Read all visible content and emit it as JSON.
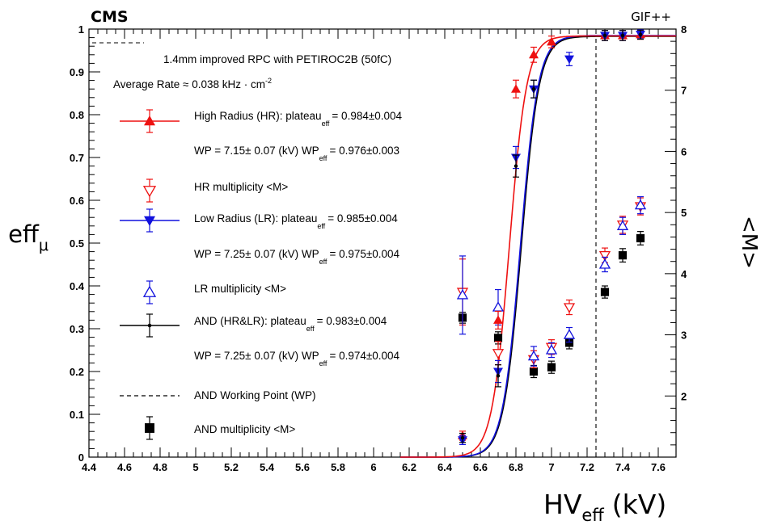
{
  "chart_data": {
    "type": "scatter",
    "experiment_label": "CMS",
    "facility_label": "GIF++",
    "title": "1.4mm improved RPC with PETIROC2B (50fC)",
    "rate_label": "Average Rate ≈ 0.038 kHz · cm",
    "rate_exponent": "-2",
    "xlabel": {
      "main": "HV",
      "sub": "eff",
      "unit": "(kV)"
    },
    "ylabel_left": {
      "main": "eff",
      "sub": "μ"
    },
    "ylabel_right": "<M>",
    "xlim": [
      4.4,
      7.7
    ],
    "ylim_left": [
      0,
      1
    ],
    "ylim_right": [
      1.0,
      8.0
    ],
    "x_ticks": [
      "4.4",
      "4.6",
      "4.8",
      "5",
      "5.2",
      "5.4",
      "5.6",
      "5.8",
      "6",
      "6.2",
      "6.4",
      "6.6",
      "6.8",
      "7",
      "7.2",
      "7.4",
      "7.6"
    ],
    "y_left_ticks": [
      "0",
      "0.1",
      "0.2",
      "0.3",
      "0.4",
      "0.5",
      "0.6",
      "0.7",
      "0.8",
      "0.9",
      "1"
    ],
    "y_right_ticks": [
      "2",
      "3",
      "4",
      "5",
      "6",
      "7",
      "8"
    ],
    "working_point_kV": 7.25,
    "series": [
      {
        "name": "High Radius (HR)",
        "color": "#ee1111",
        "axis": "left",
        "marker": "triangle-up",
        "fit": {
          "plateau": 0.984,
          "wp": 7.15,
          "slope": 20.5,
          "hv50": 6.763
        },
        "points": [
          [
            6.5,
            0.05,
            0.005
          ],
          [
            6.7,
            0.32,
            0.015
          ],
          [
            6.8,
            0.86,
            0.015
          ],
          [
            6.9,
            0.94,
            0.012
          ],
          [
            7.0,
            0.97,
            0.008
          ],
          [
            7.3,
            0.985,
            0.006
          ],
          [
            7.4,
            0.985,
            0.006
          ],
          [
            7.5,
            0.987,
            0.005
          ]
        ],
        "legend": {
          "label": "High Radius (HR): plateau",
          "sub": "eff",
          "value": "= 0.984±0.004",
          "wp_label": "WP = 7.15± 0.07 (kV)  WP",
          "wp_sub": "eff",
          "wp_value": "= 0.976±0.003"
        }
      },
      {
        "name": "HR multiplicity <M>",
        "color": "#ee1111",
        "axis": "right",
        "marker": "triangle-down-open",
        "points": [
          [
            6.5,
            3.7,
            0.5
          ],
          [
            6.7,
            2.7,
            0.15
          ],
          [
            6.9,
            2.6,
            0.1
          ],
          [
            7.0,
            2.8,
            0.08
          ],
          [
            7.1,
            3.45,
            0.08
          ],
          [
            7.3,
            4.3,
            0.08
          ],
          [
            7.4,
            4.8,
            0.1
          ],
          [
            7.5,
            5.1,
            0.1
          ]
        ],
        "legend": {
          "label": "HR multiplicity <M>"
        }
      },
      {
        "name": "Low Radius (LR)",
        "color": "#1111dd",
        "axis": "left",
        "marker": "triangle-down",
        "fit": {
          "plateau": 0.985,
          "wp": 7.25,
          "slope": 20.0,
          "hv50": 6.825
        },
        "points": [
          [
            6.5,
            0.04,
            0.005
          ],
          [
            6.7,
            0.2,
            0.02
          ],
          [
            6.8,
            0.7,
            0.02
          ],
          [
            6.9,
            0.86,
            0.015
          ],
          [
            7.1,
            0.93,
            0.01
          ],
          [
            7.3,
            0.985,
            0.006
          ],
          [
            7.4,
            0.985,
            0.006
          ],
          [
            7.5,
            0.988,
            0.005
          ]
        ],
        "legend": {
          "label": "Low Radius (LR): plateau",
          "sub": "eff",
          "value": "= 0.985±0.004",
          "wp_label": "WP = 7.25± 0.07 (kV)  WP",
          "wp_sub": "eff",
          "wp_value": "= 0.975±0.004"
        }
      },
      {
        "name": "LR multiplicity <M>",
        "color": "#1111dd",
        "axis": "right",
        "marker": "triangle-up-open",
        "points": [
          [
            6.5,
            3.65,
            0.6
          ],
          [
            6.7,
            3.45,
            0.25
          ],
          [
            6.9,
            2.65,
            0.12
          ],
          [
            7.0,
            2.75,
            0.08
          ],
          [
            7.1,
            3.0,
            0.08
          ],
          [
            7.3,
            4.15,
            0.08
          ],
          [
            7.4,
            4.78,
            0.1
          ],
          [
            7.5,
            5.12,
            0.1
          ]
        ],
        "legend": {
          "label": "LR multiplicity <M>"
        }
      },
      {
        "name": "AND (HR&LR)",
        "color": "#000000",
        "axis": "left",
        "marker": "dot",
        "fit": {
          "plateau": 0.983,
          "wp": 7.25,
          "slope": 20.0,
          "hv50": 6.83
        },
        "points": [
          [
            6.5,
            0.045,
            0.005
          ],
          [
            6.7,
            0.19,
            0.02
          ],
          [
            6.8,
            0.68,
            0.02
          ],
          [
            6.9,
            0.86,
            0.015
          ],
          [
            7.3,
            0.985,
            0.006
          ],
          [
            7.4,
            0.985,
            0.006
          ],
          [
            7.5,
            0.987,
            0.005
          ]
        ],
        "legend": {
          "label": "AND (HR&LR): plateau",
          "sub": "eff",
          "value": "= 0.983±0.004",
          "wp_label": "WP = 7.25± 0.07 (kV)  WP",
          "wp_sub": "eff",
          "wp_value": "= 0.974±0.004"
        }
      },
      {
        "name": "AND multiplicity <M>",
        "color": "#000000",
        "axis": "right",
        "marker": "square",
        "points": [
          [
            6.5,
            3.28,
            0.05
          ],
          [
            6.7,
            2.95,
            0.06
          ],
          [
            6.9,
            2.4,
            0.06
          ],
          [
            7.0,
            2.47,
            0.06
          ],
          [
            7.1,
            2.87,
            0.06
          ],
          [
            7.3,
            3.7,
            0.06
          ],
          [
            7.4,
            4.3,
            0.07
          ],
          [
            7.5,
            4.58,
            0.07
          ]
        ],
        "legend": {
          "label": "AND multiplicity <M>"
        }
      }
    ],
    "wp_legend_label": "AND Working Point (WP)"
  }
}
